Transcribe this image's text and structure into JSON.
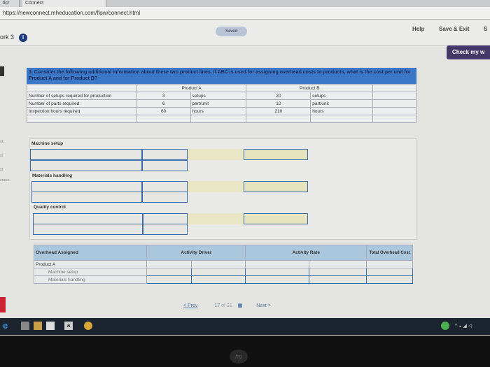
{
  "browser": {
    "tabs": [
      "ticr",
      "Connect"
    ],
    "url": "https://newconnect.mheducation.com/flow/connect.html"
  },
  "header": {
    "saved": "Saved",
    "work_title": "ork 3",
    "help": "Help",
    "save_exit": "Save & Exit",
    "submit_partial": "S",
    "check": "Check my w"
  },
  "sidebar": [
    "ok",
    "nt",
    "nt",
    "ences"
  ],
  "question": {
    "text": "3. Consider the following additional information about these two product lines. If ABC is used for assigning overhead costs to products, what is the cost per unit for Product A and for Product B?",
    "product_a": "Product A",
    "product_b": "Product B",
    "rows": [
      {
        "label": "Number of setups required for production",
        "a": "3",
        "a_unit": "setups",
        "b": "20",
        "b_unit": "setups"
      },
      {
        "label": "Number of parts required",
        "a": "6",
        "a_unit": "part/unit",
        "b": "10",
        "b_unit": "part/unit"
      },
      {
        "label": "Inspection hours required",
        "a": "60",
        "a_unit": "hours",
        "b": "210",
        "b_unit": "hours"
      }
    ]
  },
  "sections": [
    "Machine setup",
    "Materials handling",
    "Quality control"
  ],
  "overhead": {
    "headers": [
      "Overhead Assigned",
      "Activity Driver",
      "Activity Rate",
      "Total Overhead Cost"
    ],
    "product": "Product A",
    "items": [
      "Machine setup",
      "Materials handling"
    ]
  },
  "pager": {
    "prev": "< Prev",
    "current": "17",
    "of": "of 31",
    "next": "Next >"
  },
  "colors": {
    "question_bar": "#3b78c8",
    "check_button": "#433a68",
    "header_cell": "#a9c6dc"
  }
}
